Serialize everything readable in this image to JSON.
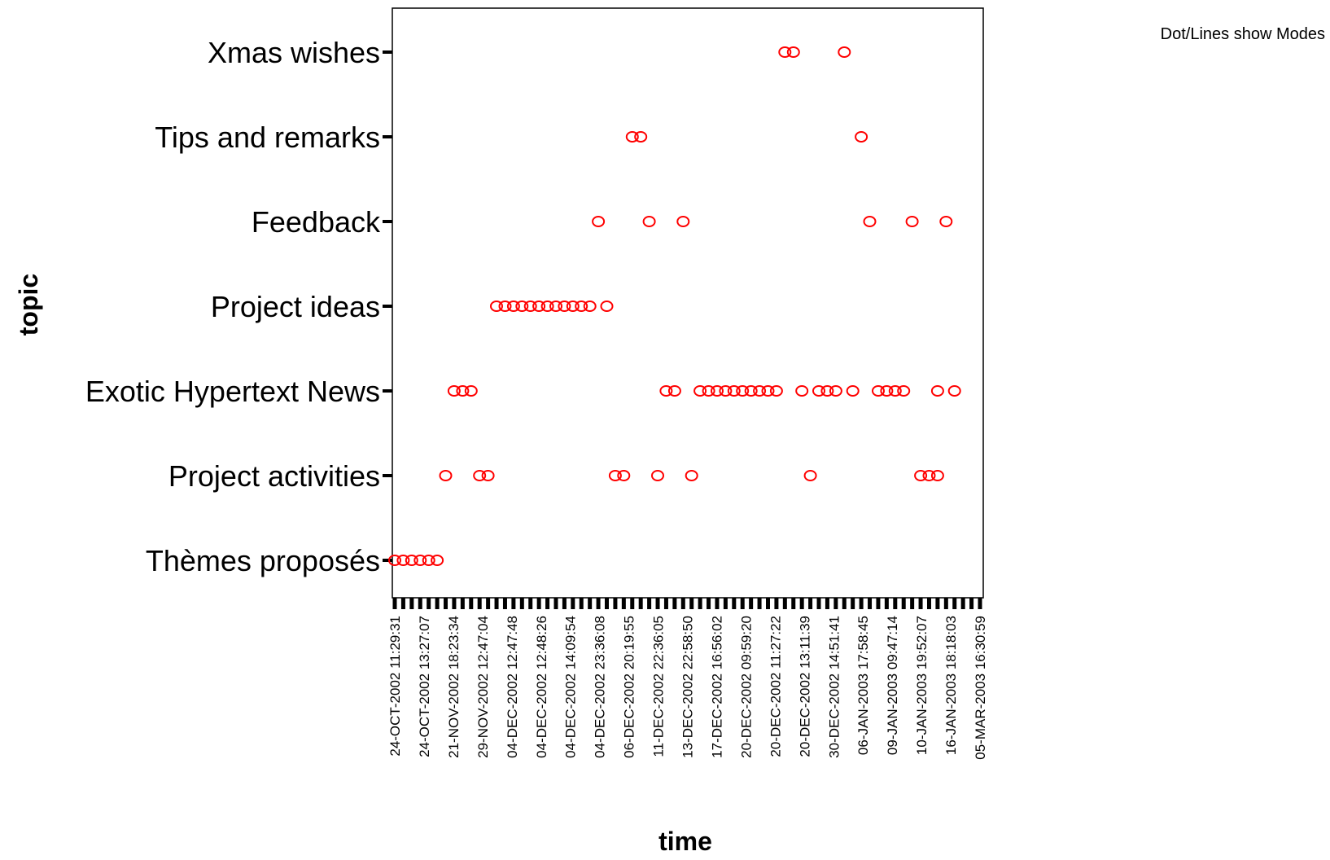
{
  "chart_data": {
    "type": "scatter",
    "title": "",
    "xlabel": "time",
    "ylabel": "topic",
    "note": "Dot/Lines show Modes",
    "colors": {
      "marker": "#ff0000",
      "axis": "#000000",
      "background": "#ffffff"
    },
    "grid": false,
    "legend": "none",
    "y_categories": [
      "Thèmes proposés",
      "Project activities",
      "Exotic Hypertext News",
      "Project ideas",
      "Feedback",
      "Tips and remarks",
      "Xmas wishes"
    ],
    "x_tick_count": 70,
    "x_tick_labels": [
      "24-OCT-2002 11:29:31",
      "24-OCT-2002 13:27:07",
      "21-NOV-2002 18:23:34",
      "29-NOV-2002 12:47:04",
      "04-DEC-2002 12:47:48",
      "04-DEC-2002 12:48:26",
      "04-DEC-2002 14:09:54",
      "04-DEC-2002 23:36:08",
      "06-DEC-2002 20:19:55",
      "11-DEC-2002 22:36:05",
      "13-DEC-2002 22:58:50",
      "17-DEC-2002 16:56:02",
      "20-DEC-2002 09:59:20",
      "20-DEC-2002 11:27:22",
      "20-DEC-2002 13:11:39",
      "30-DEC-2002 14:51:41",
      "06-JAN-2003 17:58:45",
      "09-JAN-2003 09:47:14",
      "10-JAN-2003 19:52:07",
      "16-JAN-2003 18:18:03",
      "05-MAR-2003 16:30:59"
    ],
    "series": [
      {
        "topic": "Xmas wishes",
        "x_index": [
          46,
          47,
          53
        ]
      },
      {
        "topic": "Tips and remarks",
        "x_index": [
          28,
          29,
          55
        ]
      },
      {
        "topic": "Feedback",
        "x_index": [
          24,
          30,
          34,
          56,
          61,
          65
        ]
      },
      {
        "topic": "Project ideas",
        "x_index": [
          12,
          13,
          14,
          15,
          16,
          17,
          18,
          19,
          20,
          21,
          22,
          23,
          25
        ]
      },
      {
        "topic": "Exotic Hypertext News",
        "x_index": [
          7,
          8,
          9,
          32,
          33,
          36,
          37,
          38,
          39,
          40,
          41,
          42,
          43,
          44,
          45,
          48,
          50,
          51,
          52,
          54,
          57,
          58,
          59,
          60,
          64,
          66
        ]
      },
      {
        "topic": "Project activities",
        "x_index": [
          6,
          10,
          11,
          26,
          27,
          31,
          35,
          49,
          62,
          63,
          64
        ]
      },
      {
        "topic": "Thèmes proposés",
        "x_index": [
          0,
          1,
          2,
          3,
          4,
          5
        ]
      }
    ]
  }
}
